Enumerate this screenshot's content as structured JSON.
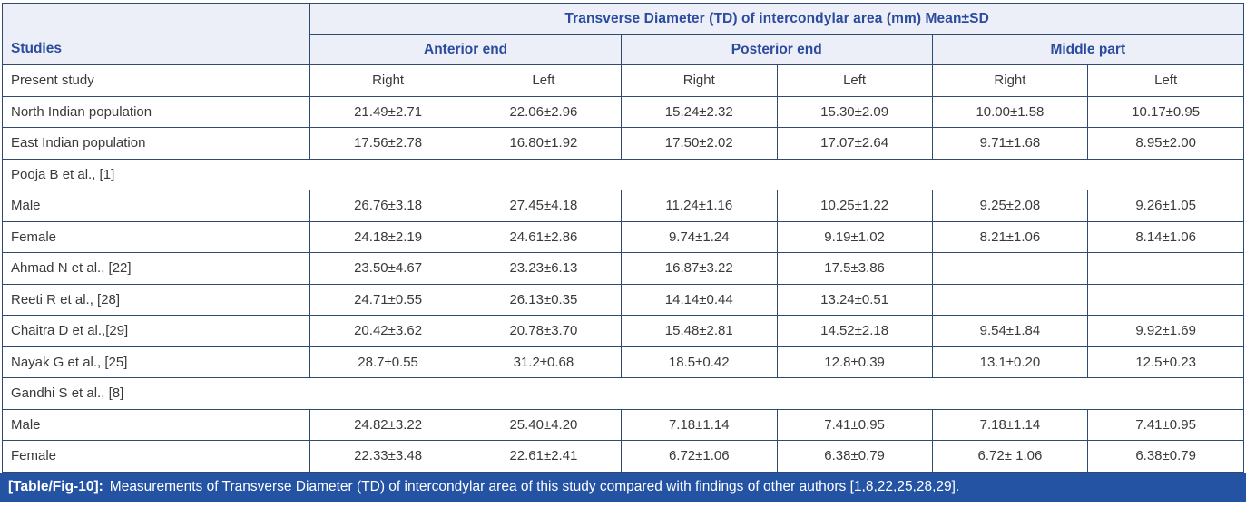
{
  "colors": {
    "border_navy": "#2c4a72",
    "header_bg": "#edeff8",
    "header_text_blue": "#2b4b9d",
    "body_text": "#3a3a3a",
    "caption_bg": "#2553a3",
    "caption_text": "#ffffff"
  },
  "table": {
    "top_header": "Transverse Diameter (TD) of intercondylar area (mm) Mean±SD",
    "studies_header": "Studies",
    "group_headers": [
      "Anterior end",
      "Posterior end",
      "Middle part"
    ],
    "rows": [
      {
        "type": "data",
        "label": "Present study",
        "values": [
          "Right",
          "Left",
          "Right",
          "Left",
          "Right",
          "Left"
        ]
      },
      {
        "type": "data",
        "label": "North Indian population",
        "values": [
          "21.49±2.71",
          "22.06±2.96",
          "15.24±2.32",
          "15.30±2.09",
          "10.00±1.58",
          "10.17±0.95"
        ]
      },
      {
        "type": "data",
        "label": "East Indian population",
        "values": [
          "17.56±2.78",
          "16.80±1.92",
          "17.50±2.02",
          "17.07±2.64",
          "9.71±1.68",
          "8.95±2.00"
        ]
      },
      {
        "type": "span",
        "label": "Pooja B et al., [1]"
      },
      {
        "type": "data",
        "label": "Male",
        "values": [
          "26.76±3.18",
          "27.45±4.18",
          "11.24±1.16",
          "10.25±1.22",
          "9.25±2.08",
          "9.26±1.05"
        ]
      },
      {
        "type": "data",
        "label": "Female",
        "values": [
          "24.18±2.19",
          "24.61±2.86",
          "9.74±1.24",
          "9.19±1.02",
          "8.21±1.06",
          "8.14±1.06"
        ]
      },
      {
        "type": "data",
        "label": "Ahmad N et al., [22]",
        "values": [
          "23.50±4.67",
          "23.23±6.13",
          "16.87±3.22",
          "17.5±3.86",
          "",
          ""
        ]
      },
      {
        "type": "data",
        "label": "Reeti R et al., [28]",
        "values": [
          "24.71±0.55",
          "26.13±0.35",
          "14.14±0.44",
          "13.24±0.51",
          "",
          ""
        ]
      },
      {
        "type": "data",
        "label": "Chaitra D et al.,[29]",
        "values": [
          "20.42±3.62",
          "20.78±3.70",
          "15.48±2.81",
          "14.52±2.18",
          "9.54±1.84",
          "9.92±1.69"
        ]
      },
      {
        "type": "data",
        "label": "Nayak G et al., [25]",
        "values": [
          "28.7±0.55",
          "31.2±0.68",
          "18.5±0.42",
          "12.8±0.39",
          "13.1±0.20",
          "12.5±0.23"
        ]
      },
      {
        "type": "span",
        "label": "Gandhi S et al., [8]"
      },
      {
        "type": "data",
        "label": "Male",
        "values": [
          "24.82±3.22",
          "25.40±4.20",
          "7.18±1.14",
          "7.41±0.95",
          "7.18±1.14",
          "7.41±0.95"
        ]
      },
      {
        "type": "data",
        "label": "Female",
        "values": [
          "22.33±3.48",
          "22.61±2.41",
          "6.72±1.06",
          "6.38±0.79",
          "6.72± 1.06",
          "6.38±0.79"
        ]
      }
    ]
  },
  "caption": {
    "tag": "[Table/Fig-10]:",
    "text": "Measurements of Transverse Diameter (TD) of intercondylar area of this study compared with findings of other authors [1,8,22,25,28,29]."
  }
}
